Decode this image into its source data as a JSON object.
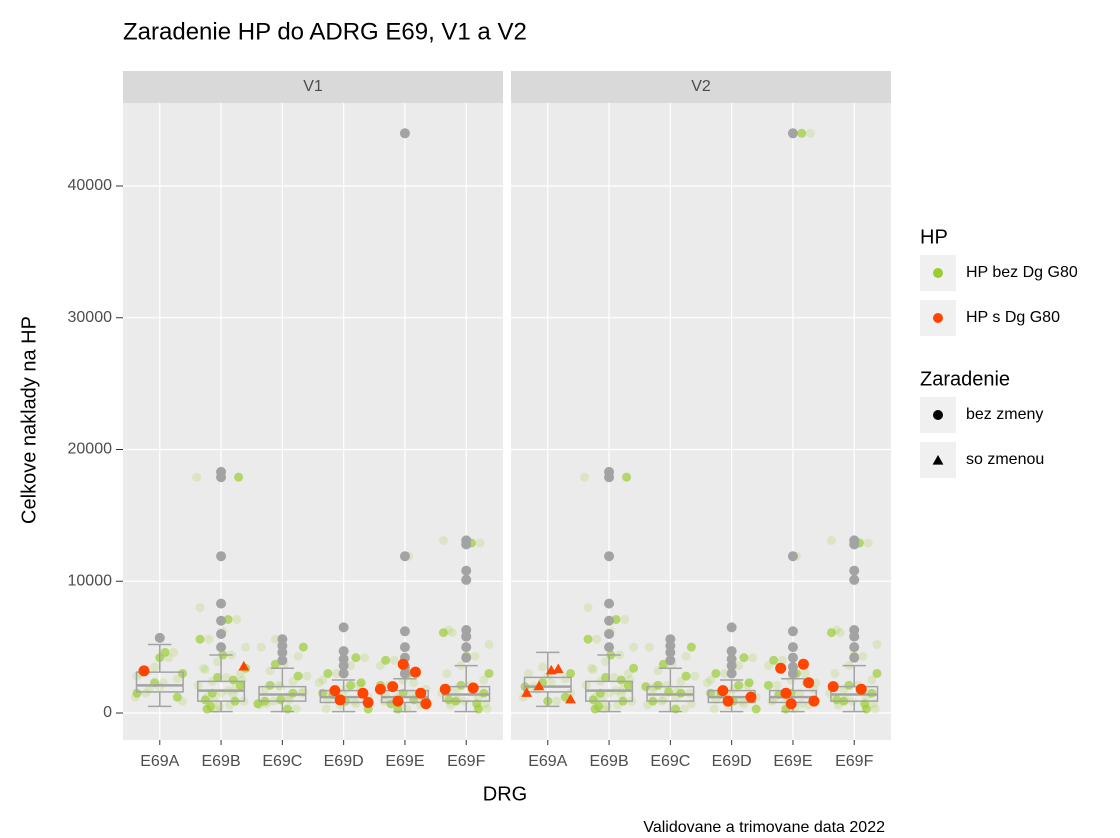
{
  "chart_data": {
    "type": "box",
    "title": "Zaradenie HP do ADRG E69, V1 a V2",
    "x_label": "DRG",
    "y_label": "Celkove naklady na HP",
    "caption": "Validovane a trimovane data 2022",
    "categories": [
      "E69A",
      "E69B",
      "E69C",
      "E69D",
      "E69E",
      "E69F"
    ],
    "ylim": [
      -2050,
      46300
    ],
    "yticks": [
      0,
      10000,
      20000,
      30000,
      40000
    ],
    "grid": true,
    "box_color": "#a3a3a3",
    "legends": [
      {
        "title": "HP",
        "entries": [
          {
            "name": "HP bez Dg G80",
            "color": "#9acd32"
          },
          {
            "name": "HP s Dg G80",
            "color": "#ff4500"
          }
        ]
      },
      {
        "title": "Zaradenie",
        "entries": [
          {
            "name": "bez zmeny",
            "shape": "circle"
          },
          {
            "name": "so zmenou",
            "shape": "triangle"
          }
        ]
      }
    ],
    "facets": [
      {
        "name": "V1",
        "boxes": [
          {
            "lower": 500,
            "q1": 1600,
            "median": 2100,
            "q3": 3100,
            "upper": 5200,
            "outliers": [
              5700
            ],
            "green": [
              1200,
              1800,
              2300,
              2600,
              3000,
              3500,
              4200,
              900,
              1500,
              2000,
              4600,
              2800
            ],
            "orange": [
              3200
            ],
            "orange_so_zmenou": []
          },
          {
            "lower": 100,
            "q1": 900,
            "median": 1700,
            "q3": 2400,
            "upper": 4400,
            "outliers": [
              5000,
              6000,
              7000,
              8300,
              11900,
              17900,
              18300
            ],
            "green": [
              300,
              600,
              900,
              1200,
              1500,
              1800,
              2100,
              2400,
              2700,
              3000,
              3400,
              3900,
              4400,
              5000,
              5600,
              6200,
              7100,
              8000,
              1000,
              1700,
              2500,
              3300,
              500,
              1400,
              17900
            ],
            "orange": [],
            "orange_so_zmenou": [
              3500
            ]
          },
          {
            "lower": 100,
            "q1": 900,
            "median": 1400,
            "q3": 2000,
            "upper": 3400,
            "outliers": [
              4000,
              4600,
              5100,
              5600
            ],
            "green": [
              300,
              600,
              900,
              1200,
              1500,
              1800,
              2100,
              2400,
              2800,
              3200,
              3700,
              4300,
              5000,
              5600,
              1000,
              1600,
              700,
              2000
            ],
            "orange": [],
            "orange_so_zmenou": []
          },
          {
            "lower": 100,
            "q1": 800,
            "median": 1200,
            "q3": 1700,
            "upper": 2500,
            "outliers": [
              3000,
              3600,
              4100,
              4700,
              6500
            ],
            "green": [
              300,
              600,
              900,
              1200,
              1500,
              1800,
              2100,
              2500,
              3000,
              3600,
              4200,
              1000,
              1400,
              700,
              2300
            ],
            "orange": [
              1700,
              1500,
              1000,
              800
            ],
            "orange_so_zmenou": []
          },
          {
            "lower": 100,
            "q1": 800,
            "median": 1200,
            "q3": 1700,
            "upper": 2600,
            "outliers": [
              3000,
              3500,
              4200,
              5000,
              6200,
              11900,
              44000
            ],
            "green": [
              300,
              600,
              900,
              1200,
              1500,
              1800,
              2100,
              2500,
              3000,
              3600,
              4000,
              11900,
              1000,
              1400,
              700,
              2300
            ],
            "orange": [
              3100,
              2000,
              1500,
              900,
              700,
              3700,
              1800
            ],
            "orange_so_zmenou": []
          },
          {
            "lower": 100,
            "q1": 900,
            "median": 1400,
            "q3": 2000,
            "upper": 3600,
            "outliers": [
              4200,
              5000,
              5800,
              6300,
              10100,
              10800,
              12800,
              13100
            ],
            "green": [
              300,
              600,
              900,
              1200,
              1500,
              1800,
              2100,
              2500,
              3000,
              3600,
              4300,
              5200,
              6100,
              10200,
              12900,
              13100,
              1000,
              1700,
              700,
              6300
            ],
            "orange": [
              1800,
              1900
            ],
            "orange_so_zmenou": []
          }
        ]
      },
      {
        "name": "V2",
        "boxes": [
          {
            "lower": 500,
            "q1": 1600,
            "median": 2000,
            "q3": 2700,
            "upper": 4600,
            "outliers": [],
            "green": [
              1200,
              1800,
              2300,
              2600,
              3000,
              3500,
              900,
              1500,
              2000,
              2800
            ],
            "orange": [],
            "orange_so_zmenou": [
              3200,
              1000,
              2000,
              3300,
              1500
            ]
          },
          {
            "lower": 100,
            "q1": 900,
            "median": 1700,
            "q3": 2400,
            "upper": 4400,
            "outliers": [
              5000,
              6000,
              7000,
              8300,
              11900,
              17900,
              18300
            ],
            "green": [
              300,
              600,
              900,
              1200,
              1500,
              1800,
              2100,
              2400,
              2700,
              3000,
              3400,
              3900,
              4400,
              5000,
              5600,
              6200,
              7100,
              8000,
              1000,
              1700,
              2500,
              3300,
              500,
              1400,
              17900
            ],
            "orange": [],
            "orange_so_zmenou": []
          },
          {
            "lower": 100,
            "q1": 900,
            "median": 1400,
            "q3": 2000,
            "upper": 3400,
            "outliers": [
              4000,
              4600,
              5100,
              5600
            ],
            "green": [
              300,
              600,
              900,
              1200,
              1500,
              1800,
              2100,
              2400,
              2800,
              3200,
              3700,
              4300,
              5000,
              1000,
              1600,
              700,
              2000
            ],
            "orange": [],
            "orange_so_zmenou": []
          },
          {
            "lower": 100,
            "q1": 800,
            "median": 1200,
            "q3": 1700,
            "upper": 2500,
            "outliers": [
              3000,
              3600,
              4100,
              4700,
              6500
            ],
            "green": [
              300,
              600,
              900,
              1200,
              1500,
              1800,
              2100,
              2500,
              3000,
              3600,
              4200,
              1000,
              1400,
              700,
              2300
            ],
            "orange": [
              1700,
              1200,
              900
            ],
            "orange_so_zmenou": []
          },
          {
            "lower": 100,
            "q1": 800,
            "median": 1200,
            "q3": 1700,
            "upper": 2600,
            "outliers": [
              3000,
              3500,
              4200,
              5000,
              6200,
              11900,
              44000
            ],
            "green": [
              300,
              600,
              900,
              1200,
              1500,
              1800,
              2100,
              2500,
              3000,
              3600,
              4000,
              11900,
              44000,
              1000,
              1400,
              700,
              2300
            ],
            "orange": [
              3700,
              3400,
              2300,
              1500,
              900,
              700
            ],
            "orange_so_zmenou": []
          },
          {
            "lower": 100,
            "q1": 900,
            "median": 1400,
            "q3": 2000,
            "upper": 3600,
            "outliers": [
              4200,
              5000,
              5800,
              6300,
              10100,
              10800,
              12800,
              13100
            ],
            "green": [
              300,
              600,
              900,
              1200,
              1500,
              1800,
              2100,
              2500,
              3000,
              3600,
              4300,
              5200,
              6100,
              10200,
              12900,
              13100,
              1000,
              1700,
              700,
              6300
            ],
            "orange": [
              2000,
              1800
            ],
            "orange_so_zmenou": []
          }
        ]
      }
    ]
  }
}
